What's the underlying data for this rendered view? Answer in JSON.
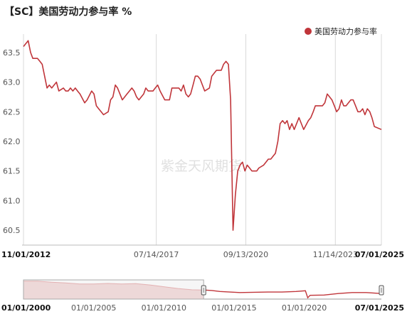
{
  "title": "【SC】美国劳动力参与率 %",
  "watermark": "紫金天风期货",
  "legend": {
    "label": "美国劳动力参与率"
  },
  "colors": {
    "series": "#c0353a",
    "grid": "#d9d9d9",
    "navigator_fill": "#f3d7d7",
    "axis": "#555555"
  },
  "chart_data": {
    "type": "line",
    "title": "【SC】美国劳动力参与率 %",
    "xlabel": "",
    "ylabel": "",
    "ylim": [
      60.25,
      63.75
    ],
    "yticks": [
      60.5,
      61.0,
      61.5,
      62.0,
      62.5,
      63.0,
      63.5
    ],
    "ytick_labels": [
      "60.5",
      "61.0",
      "61.5",
      "62.0",
      "62.5",
      "63.0",
      "63.5"
    ],
    "xlim": [
      "2012-11-01",
      "2025-07-01"
    ],
    "xticks": [
      {
        "date": "2012-11-01",
        "label": "11/01/2012",
        "bold": true
      },
      {
        "date": "2017-07-14",
        "label": "07/14/2017",
        "bold": false
      },
      {
        "date": "2020-09-13",
        "label": "09/13/2020",
        "bold": false
      },
      {
        "date": "2023-11-14",
        "label": "11/14/2023",
        "bold": false
      },
      {
        "date": "2025-07-01",
        "label": "07/01/2025",
        "bold": true
      }
    ],
    "grid": "vertical",
    "legend_position": "top-right",
    "series": [
      {
        "name": "美国劳动力参与率",
        "color": "#c0353a",
        "points": [
          [
            "2012-11-01",
            63.6
          ],
          [
            "2013-01-01",
            63.7
          ],
          [
            "2013-02-01",
            63.5
          ],
          [
            "2013-03-01",
            63.4
          ],
          [
            "2013-05-01",
            63.4
          ],
          [
            "2013-06-01",
            63.35
          ],
          [
            "2013-07-01",
            63.3
          ],
          [
            "2013-08-01",
            63.1
          ],
          [
            "2013-09-01",
            62.9
          ],
          [
            "2013-10-01",
            62.95
          ],
          [
            "2013-11-01",
            62.9
          ],
          [
            "2013-12-01",
            62.95
          ],
          [
            "2014-01-01",
            63.0
          ],
          [
            "2014-02-01",
            62.85
          ],
          [
            "2014-04-01",
            62.9
          ],
          [
            "2014-05-01",
            62.85
          ],
          [
            "2014-06-01",
            62.85
          ],
          [
            "2014-07-01",
            62.9
          ],
          [
            "2014-08-01",
            62.85
          ],
          [
            "2014-09-01",
            62.9
          ],
          [
            "2014-10-01",
            62.85
          ],
          [
            "2014-11-01",
            62.8
          ],
          [
            "2015-01-01",
            62.65
          ],
          [
            "2015-02-01",
            62.7
          ],
          [
            "2015-04-01",
            62.85
          ],
          [
            "2015-05-01",
            62.8
          ],
          [
            "2015-06-01",
            62.6
          ],
          [
            "2015-07-01",
            62.55
          ],
          [
            "2015-08-01",
            62.5
          ],
          [
            "2015-09-01",
            62.45
          ],
          [
            "2015-11-01",
            62.5
          ],
          [
            "2015-12-01",
            62.7
          ],
          [
            "2016-01-01",
            62.75
          ],
          [
            "2016-02-01",
            62.95
          ],
          [
            "2016-03-01",
            62.9
          ],
          [
            "2016-05-01",
            62.7
          ],
          [
            "2016-06-01",
            62.75
          ],
          [
            "2016-07-01",
            62.8
          ],
          [
            "2016-08-01",
            62.85
          ],
          [
            "2016-09-01",
            62.9
          ],
          [
            "2016-10-01",
            62.85
          ],
          [
            "2016-11-01",
            62.75
          ],
          [
            "2016-12-01",
            62.7
          ],
          [
            "2017-02-01",
            62.8
          ],
          [
            "2017-03-01",
            62.9
          ],
          [
            "2017-04-01",
            62.85
          ],
          [
            "2017-06-01",
            62.85
          ],
          [
            "2017-07-01",
            62.9
          ],
          [
            "2017-08-01",
            62.95
          ],
          [
            "2017-09-01",
            62.85
          ],
          [
            "2017-11-01",
            62.7
          ],
          [
            "2018-01-01",
            62.7
          ],
          [
            "2018-02-01",
            62.9
          ],
          [
            "2018-03-01",
            62.9
          ],
          [
            "2018-05-01",
            62.9
          ],
          [
            "2018-06-01",
            62.85
          ],
          [
            "2018-07-01",
            62.95
          ],
          [
            "2018-08-01",
            62.8
          ],
          [
            "2018-09-01",
            62.75
          ],
          [
            "2018-10-01",
            62.8
          ],
          [
            "2018-11-01",
            62.95
          ],
          [
            "2018-12-01",
            63.1
          ],
          [
            "2019-01-01",
            63.1
          ],
          [
            "2019-02-01",
            63.05
          ],
          [
            "2019-04-01",
            62.85
          ],
          [
            "2019-06-01",
            62.9
          ],
          [
            "2019-07-01",
            63.1
          ],
          [
            "2019-09-01",
            63.2
          ],
          [
            "2019-11-01",
            63.2
          ],
          [
            "2019-12-01",
            63.3
          ],
          [
            "2020-01-01",
            63.35
          ],
          [
            "2020-02-01",
            63.3
          ],
          [
            "2020-03-01",
            62.7
          ],
          [
            "2020-04-01",
            60.5
          ],
          [
            "2020-05-01",
            61.1
          ],
          [
            "2020-06-01",
            61.5
          ],
          [
            "2020-07-01",
            61.6
          ],
          [
            "2020-08-01",
            61.65
          ],
          [
            "2020-09-01",
            61.5
          ],
          [
            "2020-10-01",
            61.6
          ],
          [
            "2020-11-01",
            61.55
          ],
          [
            "2020-12-01",
            61.5
          ],
          [
            "2021-02-01",
            61.5
          ],
          [
            "2021-03-01",
            61.55
          ],
          [
            "2021-05-01",
            61.6
          ],
          [
            "2021-06-01",
            61.65
          ],
          [
            "2021-07-01",
            61.7
          ],
          [
            "2021-08-01",
            61.7
          ],
          [
            "2021-09-01",
            61.75
          ],
          [
            "2021-10-01",
            61.8
          ],
          [
            "2021-11-01",
            62.0
          ],
          [
            "2021-12-01",
            62.3
          ],
          [
            "2022-01-01",
            62.35
          ],
          [
            "2022-02-01",
            62.3
          ],
          [
            "2022-03-01",
            62.35
          ],
          [
            "2022-04-01",
            62.2
          ],
          [
            "2022-05-01",
            62.3
          ],
          [
            "2022-06-01",
            62.2
          ],
          [
            "2022-08-01",
            62.4
          ],
          [
            "2022-09-01",
            62.3
          ],
          [
            "2022-10-01",
            62.2
          ],
          [
            "2022-12-01",
            62.35
          ],
          [
            "2023-01-01",
            62.4
          ],
          [
            "2023-02-01",
            62.5
          ],
          [
            "2023-03-01",
            62.6
          ],
          [
            "2023-06-01",
            62.6
          ],
          [
            "2023-07-01",
            62.65
          ],
          [
            "2023-08-01",
            62.8
          ],
          [
            "2023-09-01",
            62.75
          ],
          [
            "2023-10-01",
            62.7
          ],
          [
            "2023-11-01",
            62.6
          ],
          [
            "2023-12-01",
            62.5
          ],
          [
            "2024-01-01",
            62.55
          ],
          [
            "2024-02-01",
            62.7
          ],
          [
            "2024-03-01",
            62.6
          ],
          [
            "2024-04-01",
            62.6
          ],
          [
            "2024-05-01",
            62.65
          ],
          [
            "2024-06-01",
            62.7
          ],
          [
            "2024-07-01",
            62.7
          ],
          [
            "2024-08-01",
            62.6
          ],
          [
            "2024-09-01",
            62.5
          ],
          [
            "2024-10-01",
            62.5
          ],
          [
            "2024-11-01",
            62.55
          ],
          [
            "2024-12-01",
            62.45
          ],
          [
            "2025-01-01",
            62.55
          ],
          [
            "2025-02-01",
            62.5
          ],
          [
            "2025-03-01",
            62.4
          ],
          [
            "2025-04-01",
            62.25
          ],
          [
            "2025-07-01",
            62.2
          ]
        ]
      }
    ]
  },
  "navigator": {
    "range": [
      "2000-01-01",
      "2025-07-01"
    ],
    "ticks": [
      {
        "date": "2000-01-01",
        "label": "01/01/2000",
        "bold": true
      },
      {
        "date": "2005-01-01",
        "label": "01/01/2005",
        "bold": false
      },
      {
        "date": "2010-01-01",
        "label": "01/01/2010",
        "bold": false
      },
      {
        "date": "2015-01-01",
        "label": "01/01/2015",
        "bold": false
      },
      {
        "date": "2020-01-01",
        "label": "01/01/2020",
        "bold": false
      },
      {
        "date": "2025-07-01",
        "label": "07/01/2025",
        "bold": true
      }
    ],
    "selection": [
      "2012-11-01",
      "2025-07-01"
    ],
    "overview_series": [
      [
        "2000-01-01",
        67.1
      ],
      [
        "2001-01-01",
        67.1
      ],
      [
        "2002-01-01",
        66.7
      ],
      [
        "2003-01-01",
        66.4
      ],
      [
        "2004-01-01",
        66.0
      ],
      [
        "2005-01-01",
        66.0
      ],
      [
        "2006-01-01",
        66.2
      ],
      [
        "2007-01-01",
        66.0
      ],
      [
        "2008-01-01",
        66.1
      ],
      [
        "2009-01-01",
        65.6
      ],
      [
        "2010-01-01",
        64.9
      ],
      [
        "2011-01-01",
        64.2
      ],
      [
        "2012-01-01",
        63.7
      ],
      [
        "2012-11-01",
        63.6
      ],
      [
        "2013-06-01",
        63.4
      ],
      [
        "2014-01-01",
        63.0
      ],
      [
        "2015-06-01",
        62.6
      ],
      [
        "2016-06-01",
        62.7
      ],
      [
        "2017-06-01",
        62.8
      ],
      [
        "2018-06-01",
        62.8
      ],
      [
        "2019-06-01",
        63.0
      ],
      [
        "2020-02-01",
        63.3
      ],
      [
        "2020-04-01",
        60.5
      ],
      [
        "2020-06-01",
        61.5
      ],
      [
        "2021-06-01",
        61.6
      ],
      [
        "2022-06-01",
        62.2
      ],
      [
        "2023-06-01",
        62.6
      ],
      [
        "2024-06-01",
        62.6
      ],
      [
        "2025-07-01",
        62.2
      ]
    ]
  }
}
